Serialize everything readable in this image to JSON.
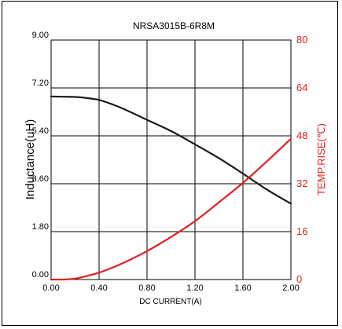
{
  "chart_data": {
    "type": "line",
    "title": "NRSA3015B-6R8M",
    "xlabel": "DC CURRENT(A)",
    "ylabel_left": "Inductance(uH)",
    "ylabel_right": "TEMP.RISE(℃)",
    "xlim": [
      0,
      2.0
    ],
    "ylim_left": [
      0,
      9.0
    ],
    "ylim_right": [
      0,
      80
    ],
    "x_ticks": [
      "0.00",
      "0.40",
      "0.80",
      "1.20",
      "1.60",
      "2.00"
    ],
    "y_left_ticks": [
      "0.00",
      "1.80",
      "3.60",
      "5.40",
      "7.20",
      "9.00"
    ],
    "y_right_ticks": [
      "0",
      "16",
      "32",
      "48",
      "64",
      "80"
    ],
    "grid": true,
    "colors": {
      "inductance": "#1a1a1a",
      "temp_rise": "#e02020",
      "axis_right": "#e02020"
    },
    "series": [
      {
        "axis": "left",
        "x": [
          0.0,
          0.1,
          0.2,
          0.3,
          0.4,
          0.5,
          0.6,
          0.8,
          1.0,
          1.2,
          1.4,
          1.6,
          1.8,
          2.0
        ],
        "values": [
          6.88,
          6.87,
          6.86,
          6.82,
          6.75,
          6.6,
          6.42,
          6.0,
          5.58,
          5.08,
          4.56,
          3.98,
          3.38,
          2.85
        ]
      },
      {
        "axis": "right",
        "x": [
          0.0,
          0.1,
          0.2,
          0.3,
          0.4,
          0.5,
          0.6,
          0.8,
          1.0,
          1.2,
          1.4,
          1.6,
          1.8,
          2.0
        ],
        "values": [
          0,
          0,
          0.3,
          1.2,
          2.3,
          3.8,
          5.5,
          9.5,
          14.2,
          19.5,
          25.8,
          32.3,
          39.5,
          47.0
        ]
      }
    ]
  }
}
